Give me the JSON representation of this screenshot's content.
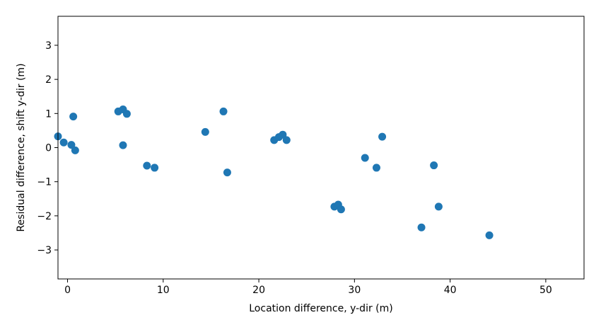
{
  "chart_data": {
    "type": "scatter",
    "title": "",
    "xlabel": "Location difference, y-dir (m)",
    "ylabel": "Residual difference, shift y-dir (m)",
    "xlim": [
      -1,
      54
    ],
    "ylim": [
      -3.85,
      3.85
    ],
    "xticks": [
      0,
      10,
      20,
      30,
      40,
      50
    ],
    "yticks": [
      -3,
      -2,
      -1,
      0,
      1,
      2,
      3
    ],
    "xtick_labels": [
      "0",
      "10",
      "20",
      "30",
      "40",
      "50"
    ],
    "ytick_labels": [
      "−3",
      "−2",
      "−1",
      "0",
      "1",
      "2",
      "3"
    ],
    "grid": false,
    "legend": "none",
    "marker_color": "#1f77b4",
    "points": [
      {
        "x": -1.0,
        "y": 0.33
      },
      {
        "x": -0.4,
        "y": 0.15
      },
      {
        "x": 0.4,
        "y": 0.08
      },
      {
        "x": 0.6,
        "y": 0.91
      },
      {
        "x": 0.8,
        "y": -0.08
      },
      {
        "x": 5.3,
        "y": 1.06
      },
      {
        "x": 5.8,
        "y": 1.12
      },
      {
        "x": 5.8,
        "y": 0.07
      },
      {
        "x": 6.2,
        "y": 0.99
      },
      {
        "x": 8.3,
        "y": -0.53
      },
      {
        "x": 9.1,
        "y": -0.59
      },
      {
        "x": 14.4,
        "y": 0.46
      },
      {
        "x": 16.3,
        "y": 1.06
      },
      {
        "x": 16.7,
        "y": -0.73
      },
      {
        "x": 21.6,
        "y": 0.22
      },
      {
        "x": 22.1,
        "y": 0.31
      },
      {
        "x": 22.5,
        "y": 0.38
      },
      {
        "x": 22.9,
        "y": 0.22
      },
      {
        "x": 27.9,
        "y": -1.73
      },
      {
        "x": 28.3,
        "y": -1.67
      },
      {
        "x": 28.6,
        "y": -1.81
      },
      {
        "x": 31.1,
        "y": -0.3
      },
      {
        "x": 32.3,
        "y": -0.59
      },
      {
        "x": 32.9,
        "y": 0.32
      },
      {
        "x": 37.0,
        "y": -2.34
      },
      {
        "x": 38.3,
        "y": -0.52
      },
      {
        "x": 38.8,
        "y": -1.73
      },
      {
        "x": 44.1,
        "y": -2.57
      }
    ]
  }
}
